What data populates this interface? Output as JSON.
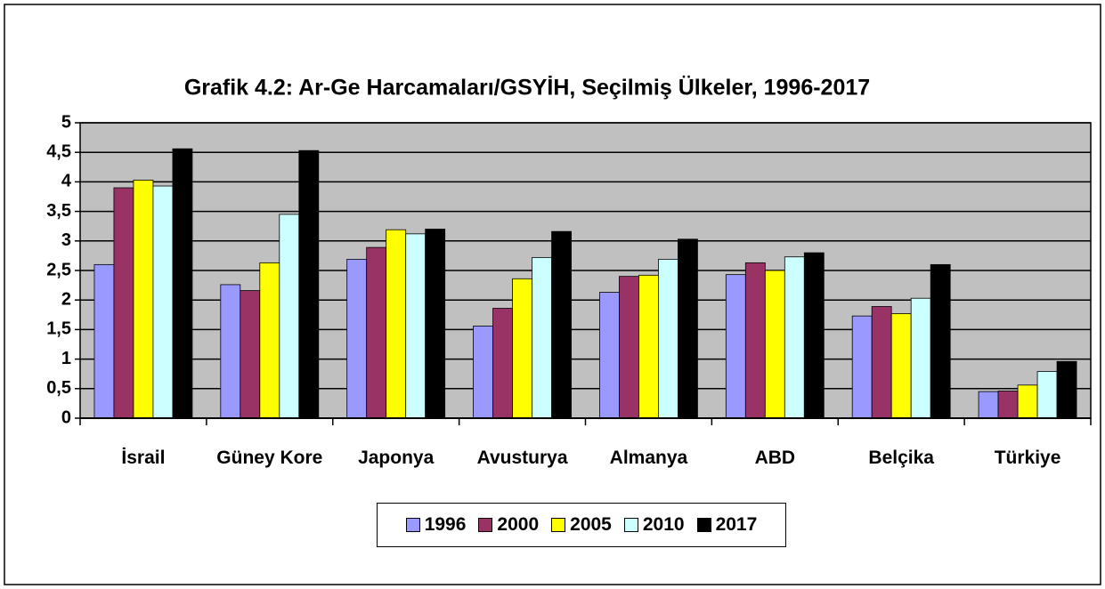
{
  "chart_data": {
    "type": "bar",
    "title": "Grafik 4.2: Ar-Ge Harcamaları/GSYİH, Seçilmiş Ülkeler, 1996-2017",
    "categories": [
      "İsrail",
      "Güney Kore",
      "Japonya",
      "Avusturya",
      "Almanya",
      "ABD",
      "Belçika",
      "Türkiye"
    ],
    "series": [
      {
        "name": "1996",
        "color": "#9999ff",
        "values": [
          2.6,
          2.26,
          2.69,
          1.56,
          2.13,
          2.43,
          1.73,
          0.45
        ]
      },
      {
        "name": "2000",
        "color": "#993366",
        "values": [
          3.9,
          2.16,
          2.89,
          1.86,
          2.4,
          2.63,
          1.89,
          0.46
        ]
      },
      {
        "name": "2005",
        "color": "#ffff00",
        "values": [
          4.03,
          2.63,
          3.19,
          2.36,
          2.42,
          2.5,
          1.77,
          0.56
        ]
      },
      {
        "name": "2010",
        "color": "#ccffff",
        "values": [
          3.93,
          3.45,
          3.12,
          2.72,
          2.69,
          2.73,
          2.03,
          0.79
        ]
      },
      {
        "name": "2017",
        "color": "#000000",
        "values": [
          4.56,
          4.53,
          3.2,
          3.16,
          3.03,
          2.8,
          2.6,
          0.96
        ]
      }
    ],
    "ylim": [
      0,
      5
    ],
    "yticks": [
      0,
      {
        "value": 0.5,
        "label": "0,5"
      },
      1,
      {
        "value": 1.5,
        "label": "1,5"
      },
      2,
      {
        "value": 2.5,
        "label": "2,5"
      },
      3,
      {
        "value": 3.5,
        "label": "3,5"
      },
      4,
      {
        "value": 4.5,
        "label": "4,5"
      },
      5
    ],
    "grid": true,
    "legend": "bottom"
  }
}
